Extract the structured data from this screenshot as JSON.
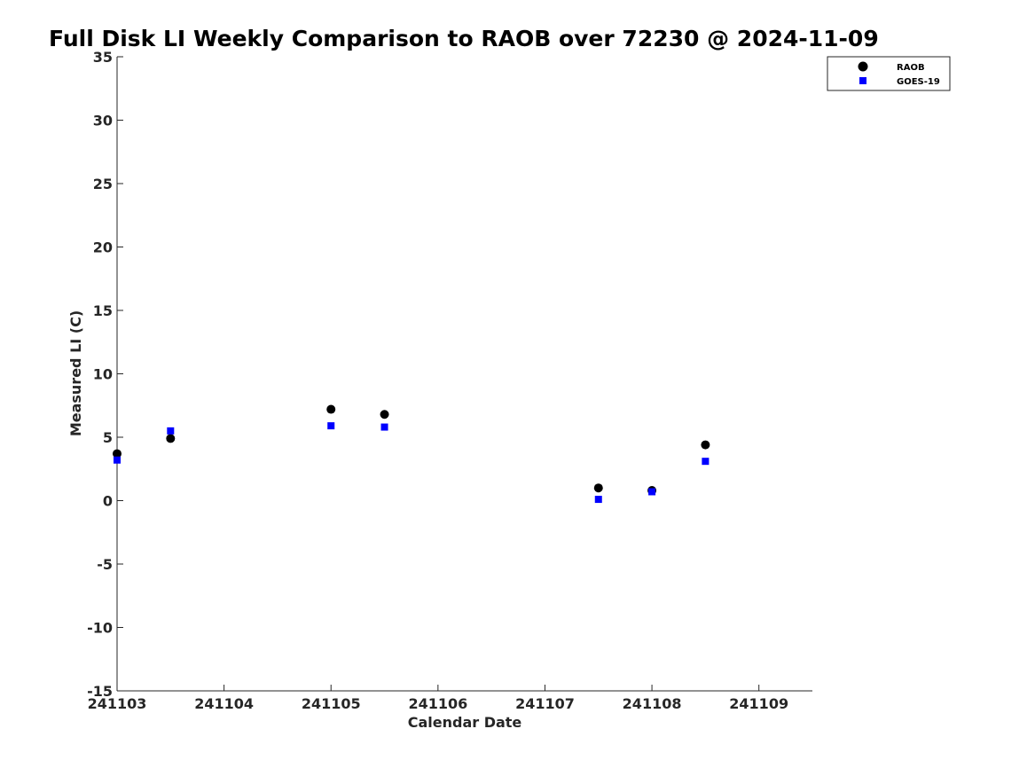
{
  "chart_data": {
    "type": "scatter",
    "title": "Full Disk LI Weekly Comparison to RAOB over 72230 @ 2024-11-09",
    "xlabel": "Calendar Date",
    "ylabel": "Measured LI (C)",
    "xlim": [
      "2024-11-03T00:00",
      "2024-11-09T12:00"
    ],
    "ylim": [
      -15,
      35
    ],
    "x_ticks": [
      {
        "value": "2024-11-03",
        "label": "241103"
      },
      {
        "value": "2024-11-04",
        "label": "241104"
      },
      {
        "value": "2024-11-05",
        "label": "241105"
      },
      {
        "value": "2024-11-06",
        "label": "241106"
      },
      {
        "value": "2024-11-07",
        "label": "241107"
      },
      {
        "value": "2024-11-08",
        "label": "241108"
      },
      {
        "value": "2024-11-09",
        "label": "241109"
      }
    ],
    "y_ticks": [
      35,
      30,
      25,
      20,
      15,
      10,
      5,
      0,
      -5,
      -10,
      -15
    ],
    "grid": false,
    "legend_position": "top-right",
    "series": [
      {
        "name": "RAOB",
        "marker": "circle",
        "color": "#000000",
        "points": [
          {
            "x": "2024-11-03T00:00",
            "y": 3.7
          },
          {
            "x": "2024-11-03T12:00",
            "y": 4.9
          },
          {
            "x": "2024-11-05T00:00",
            "y": 7.2
          },
          {
            "x": "2024-11-05T12:00",
            "y": 6.8
          },
          {
            "x": "2024-11-07T12:00",
            "y": 1.0
          },
          {
            "x": "2024-11-08T00:00",
            "y": 0.8
          },
          {
            "x": "2024-11-08T12:00",
            "y": 4.4
          }
        ]
      },
      {
        "name": "GOES-19",
        "marker": "square",
        "color": "#0000ff",
        "points": [
          {
            "x": "2024-11-03T00:00",
            "y": 3.2
          },
          {
            "x": "2024-11-03T12:00",
            "y": 5.5
          },
          {
            "x": "2024-11-05T00:00",
            "y": 5.9
          },
          {
            "x": "2024-11-05T12:00",
            "y": 5.8
          },
          {
            "x": "2024-11-07T12:00",
            "y": 0.1
          },
          {
            "x": "2024-11-08T00:00",
            "y": 0.7
          },
          {
            "x": "2024-11-08T12:00",
            "y": 3.1
          }
        ]
      }
    ]
  }
}
